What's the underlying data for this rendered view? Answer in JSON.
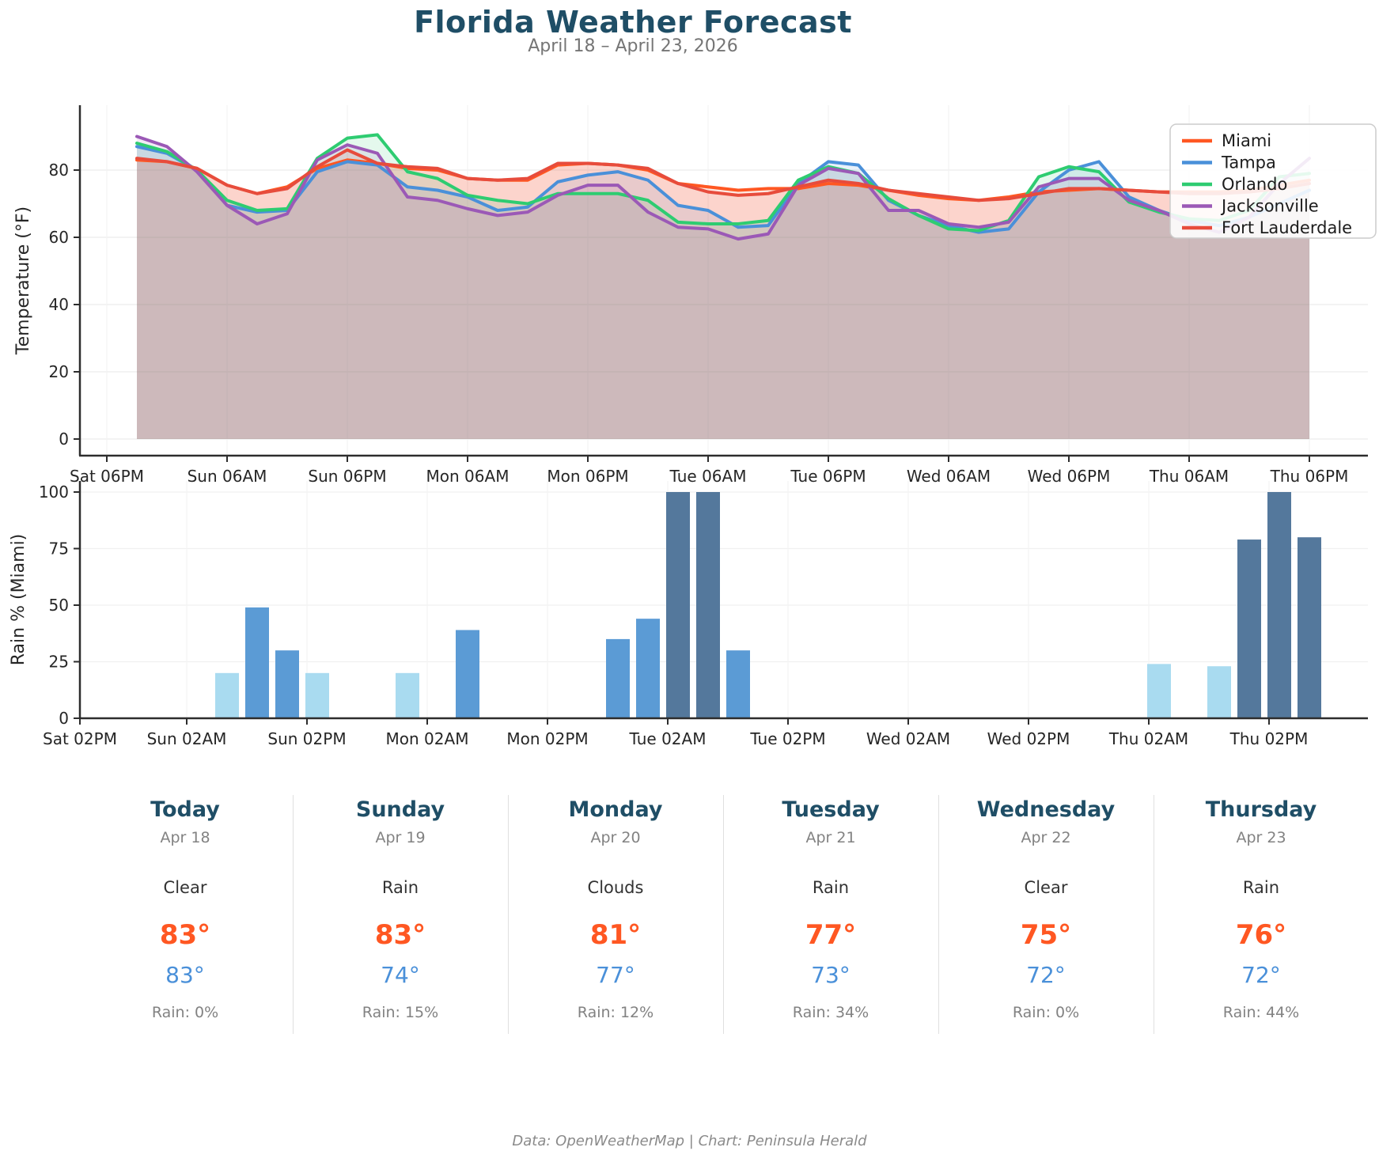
{
  "title": "Florida Weather Forecast",
  "subtitle": "April 18 – April 23, 2026",
  "footer": "Data: OpenWeatherMap | Chart: Peninsula Herald",
  "colors": {
    "heading_blue": "#1F4E66",
    "accent_orange": "#FF5722",
    "accent_blue": "#4A90D9",
    "text_gray": "#828282"
  },
  "chart_data": [
    {
      "type": "line",
      "ylabel": "Temperature (°F)",
      "yticks": [
        0,
        20,
        40,
        60,
        80
      ],
      "ylim": [
        -5,
        99
      ],
      "grid": true,
      "legend_position": "upper right",
      "fill": "each line filled to 0 with ~13% opacity",
      "xticklabels": [
        "Sat 06PM",
        "Sun 06AM",
        "Sun 06PM",
        "Mon 06AM",
        "Mon 06PM",
        "Tue 06AM",
        "Tue 06PM",
        "Wed 06AM",
        "Wed 06PM",
        "Thu 06AM",
        "Thu 06PM"
      ],
      "x_times": [
        "Sat 09PM",
        "Sun 12AM",
        "Sun 03AM",
        "Sun 06AM",
        "Sun 09AM",
        "Sun 12PM",
        "Sun 03PM",
        "Sun 06PM",
        "Sun 09PM",
        "Mon 12AM",
        "Mon 03AM",
        "Mon 06AM",
        "Mon 09AM",
        "Mon 12PM",
        "Mon 03PM",
        "Mon 06PM",
        "Mon 09PM",
        "Tue 12AM",
        "Tue 03AM",
        "Tue 06AM",
        "Tue 09AM",
        "Tue 12PM",
        "Tue 03PM",
        "Tue 06PM",
        "Tue 09PM",
        "Wed 12AM",
        "Wed 03AM",
        "Wed 06AM",
        "Wed 09AM",
        "Wed 12PM",
        "Wed 03PM",
        "Wed 06PM",
        "Wed 09PM",
        "Thu 12AM",
        "Thu 03AM",
        "Thu 06AM",
        "Thu 09AM",
        "Thu 12PM",
        "Thu 03PM",
        "Thu 06PM"
      ],
      "time_step_hours": 3,
      "series": [
        {
          "name": "Miami",
          "color": "#FF5722",
          "values": [
            83,
            82.5,
            80.5,
            75.5,
            73,
            75,
            80.5,
            83,
            82,
            80.5,
            80,
            77.5,
            77,
            77,
            81.5,
            82,
            81.5,
            80,
            76,
            75,
            74,
            74.5,
            74.5,
            76,
            75.5,
            74,
            72.5,
            71.5,
            71,
            72,
            73.5,
            74,
            74.5,
            74,
            73.5,
            73.5,
            73.5,
            74,
            75.5,
            77
          ]
        },
        {
          "name": "Tampa",
          "color": "#4A90D9",
          "values": [
            87,
            85,
            80,
            69.5,
            67.5,
            68,
            79.5,
            82.5,
            81.5,
            75,
            74,
            72,
            68,
            69,
            76.5,
            78.5,
            79.5,
            77,
            69.5,
            68,
            63,
            63.5,
            76,
            82.5,
            81.5,
            71,
            66.5,
            63.5,
            61.5,
            62.5,
            73.5,
            80,
            82.5,
            72,
            68,
            65,
            63.5,
            66,
            70,
            74
          ]
        },
        {
          "name": "Orlando",
          "color": "#2ECC71",
          "values": [
            88,
            85.5,
            80,
            71,
            68,
            68.5,
            83.5,
            89.5,
            90.5,
            79.5,
            77.5,
            72.5,
            71,
            70,
            73,
            73,
            73,
            71,
            64.5,
            64,
            64,
            65,
            77,
            81,
            79,
            71.5,
            66.5,
            62.5,
            62,
            65,
            78,
            81,
            79.5,
            70.5,
            67.5,
            65.5,
            65,
            68,
            78,
            79
          ]
        },
        {
          "name": "Jacksonville",
          "color": "#9B59B6",
          "values": [
            90,
            87,
            79.5,
            69.5,
            64,
            67,
            83,
            87.5,
            85,
            72,
            71,
            68.5,
            66.5,
            67.5,
            72.5,
            75.5,
            75.5,
            67.5,
            63,
            62.5,
            59.5,
            61,
            75.5,
            80.5,
            79,
            68,
            68,
            64,
            63,
            64.5,
            75,
            77.5,
            77.5,
            71,
            68,
            64,
            61.5,
            66,
            76,
            83.5
          ]
        },
        {
          "name": "Fort Lauderdale",
          "color": "#E74C3C",
          "values": [
            83.5,
            82.5,
            80.5,
            75.5,
            73,
            74.5,
            81,
            86,
            82,
            81,
            80.5,
            77.5,
            77,
            77.5,
            82,
            82,
            81.5,
            80.5,
            76,
            73.5,
            72.5,
            73,
            75,
            77,
            76,
            74,
            73,
            72,
            71,
            71.5,
            73,
            74.5,
            74.5,
            74,
            73.5,
            73,
            73,
            73.5,
            74.5,
            76
          ]
        }
      ]
    },
    {
      "type": "bar",
      "ylabel": "Rain % (Miami)",
      "yticks": [
        0,
        25,
        50,
        75,
        100
      ],
      "ylim": [
        0,
        105
      ],
      "xticklabels": [
        "Sat 02PM",
        "Sun 02AM",
        "Sun 02PM",
        "Mon 02AM",
        "Mon 02PM",
        "Tue 02AM",
        "Tue 02PM",
        "Wed 02AM",
        "Wed 02PM",
        "Thu 02AM",
        "Thu 02PM"
      ],
      "time_step_hours": 3,
      "values": [
        0,
        0,
        0,
        20,
        49,
        30,
        20,
        0,
        0,
        20,
        0,
        39,
        0,
        0,
        0,
        0,
        35,
        44,
        100,
        100,
        30,
        0,
        0,
        0,
        0,
        0,
        0,
        0,
        0,
        0,
        0,
        0,
        0,
        0,
        24,
        0,
        23,
        79,
        100,
        80
      ],
      "colors": {
        "low": "#A9DBF0",
        "mid": "#5B9BD5",
        "high": "#54789C"
      },
      "color_rule": "low: value < 25, mid: 25–74, high: >= 75"
    }
  ],
  "forecast_cards": [
    {
      "day": "Today",
      "date": "Apr 18",
      "condition": "Clear",
      "high": "83°",
      "low": "83°",
      "rain": "Rain: 0%"
    },
    {
      "day": "Sunday",
      "date": "Apr 19",
      "condition": "Rain",
      "high": "83°",
      "low": "74°",
      "rain": "Rain: 15%"
    },
    {
      "day": "Monday",
      "date": "Apr 20",
      "condition": "Clouds",
      "high": "81°",
      "low": "77°",
      "rain": "Rain: 12%"
    },
    {
      "day": "Tuesday",
      "date": "Apr 21",
      "condition": "Rain",
      "high": "77°",
      "low": "73°",
      "rain": "Rain: 34%"
    },
    {
      "day": "Wednesday",
      "date": "Apr 22",
      "condition": "Clear",
      "high": "75°",
      "low": "72°",
      "rain": "Rain: 0%"
    },
    {
      "day": "Thursday",
      "date": "Apr 23",
      "condition": "Rain",
      "high": "76°",
      "low": "72°",
      "rain": "Rain: 44%"
    }
  ]
}
